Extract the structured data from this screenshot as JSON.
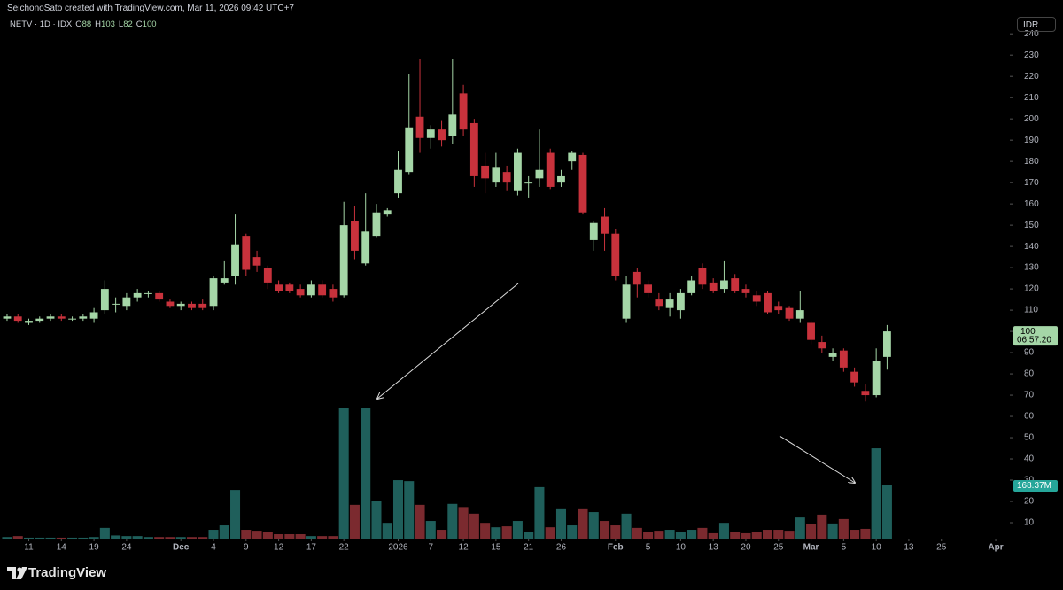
{
  "chart_data": {
    "type": "candlestick",
    "title": "SeichonoSato created with TradingView.com, Mar 11, 2026 09:42 UTC+7",
    "symbol": "NETV · 1D · IDX",
    "ohlc_labels": [
      "O",
      "H",
      "L",
      "C"
    ],
    "currency": "IDR",
    "countdown": "06:57:20",
    "brand": "TradingView",
    "up_color": "#a5d6a7",
    "down_color": "#c8323c",
    "volume_up_color": "#1f5f5b",
    "volume_down_color": "#7b2a2f",
    "open": [
      106,
      107,
      104,
      105,
      106,
      107,
      106,
      106,
      106,
      110,
      113,
      112,
      116,
      118,
      118,
      114,
      112,
      113,
      113,
      112,
      123,
      126,
      145,
      135,
      130,
      122,
      122,
      120,
      117,
      122,
      120,
      117,
      152,
      132,
      145,
      155,
      165,
      175,
      201,
      191,
      195,
      192,
      212,
      198,
      178,
      170,
      175,
      166,
      170,
      172,
      184,
      170,
      180,
      183,
      143,
      154,
      146,
      106,
      128,
      122,
      115,
      111,
      110,
      118,
      130,
      123,
      120,
      125,
      120,
      117,
      118,
      112,
      111,
      106,
      104,
      95,
      88,
      91,
      81,
      72,
      70,
      88
    ],
    "high": [
      108,
      108,
      106,
      107,
      108,
      108,
      107,
      108,
      111,
      124,
      116,
      118,
      120,
      119,
      119,
      115,
      114,
      114,
      115,
      126,
      133,
      155,
      146,
      138,
      131,
      124,
      123,
      122,
      124,
      124,
      122,
      161,
      159,
      165,
      160,
      158,
      185,
      221,
      228,
      197,
      199,
      228,
      216,
      200,
      184,
      184,
      178,
      186,
      173,
      195,
      186,
      176,
      185,
      184,
      152,
      158,
      148,
      126,
      130,
      124,
      118,
      118,
      120,
      126,
      132,
      125,
      133,
      127,
      122,
      119,
      119,
      114,
      112,
      119,
      105,
      98,
      92,
      92,
      83,
      75,
      92,
      103
    ],
    "low": [
      105,
      104,
      103,
      104,
      105,
      105,
      105,
      105,
      104,
      108,
      109,
      110,
      114,
      116,
      114,
      111,
      110,
      110,
      110,
      110,
      122,
      122,
      126,
      128,
      120,
      118,
      118,
      116,
      116,
      116,
      114,
      116,
      134,
      131,
      144,
      154,
      163,
      174,
      184,
      186,
      187,
      188,
      192,
      168,
      165,
      168,
      166,
      164,
      163,
      168,
      167,
      168,
      176,
      155,
      138,
      138,
      124,
      104,
      116,
      116,
      110,
      107,
      106,
      117,
      120,
      118,
      118,
      118,
      116,
      112,
      108,
      108,
      105,
      104,
      94,
      90,
      86,
      81,
      74,
      67,
      69,
      82
    ],
    "close": [
      107,
      105,
      105,
      106,
      107,
      106,
      106,
      107,
      109,
      120,
      113,
      116,
      118,
      118,
      115,
      112,
      113,
      111,
      111,
      125,
      125,
      141,
      129,
      131,
      123,
      119,
      119,
      117,
      122,
      117,
      116,
      150,
      138,
      147,
      156,
      157,
      176,
      196,
      191,
      195,
      190,
      202,
      195,
      173,
      172,
      177,
      170,
      184,
      170,
      176,
      168,
      173,
      184,
      156,
      151,
      146,
      126,
      122,
      122,
      118,
      112,
      115,
      118,
      124,
      122,
      119,
      124,
      119,
      118,
      114,
      109,
      110,
      106,
      110,
      96,
      92,
      90,
      83,
      76,
      70,
      86,
      100
    ],
    "volume": [
      5,
      8,
      3,
      3,
      3,
      3,
      3,
      3,
      5,
      34,
      10,
      8,
      8,
      5,
      5,
      5,
      5,
      5,
      5,
      28,
      42,
      154,
      28,
      25,
      20,
      14,
      14,
      14,
      8,
      8,
      8,
      415,
      107,
      415,
      120,
      50,
      185,
      182,
      107,
      56,
      28,
      110,
      100,
      79,
      50,
      36,
      39,
      56,
      22,
      163,
      36,
      93,
      42,
      93,
      84,
      56,
      42,
      79,
      34,
      22,
      25,
      28,
      22,
      28,
      34,
      17,
      50,
      22,
      17,
      20,
      28,
      28,
      25,
      67,
      45,
      76,
      48,
      62,
      28,
      31,
      286,
      168.37
    ],
    "volume_label": "168.37M",
    "vlim": [
      0,
      606
    ],
    "ylim": [
      2.5,
      243
    ],
    "yticks": [
      10,
      20,
      30,
      40,
      50,
      60,
      70,
      80,
      90,
      100,
      110,
      120,
      130,
      140,
      150,
      160,
      170,
      180,
      190,
      200,
      210,
      220,
      230,
      240
    ],
    "xlim": [
      -0.65,
      92.3
    ],
    "xticks": [
      {
        "value": 2,
        "label": "11"
      },
      {
        "value": 5,
        "label": "14"
      },
      {
        "value": 8,
        "label": "19"
      },
      {
        "value": 11,
        "label": "24"
      },
      {
        "value": 16,
        "label": "Dec"
      },
      {
        "value": 19,
        "label": "4"
      },
      {
        "value": 22,
        "label": "9"
      },
      {
        "value": 25,
        "label": "12"
      },
      {
        "value": 28,
        "label": "17"
      },
      {
        "value": 31,
        "label": "22"
      },
      {
        "value": 36,
        "label": "2026"
      },
      {
        "value": 39,
        "label": "7"
      },
      {
        "value": 42,
        "label": "12"
      },
      {
        "value": 45,
        "label": "15"
      },
      {
        "value": 48,
        "label": "21"
      },
      {
        "value": 51,
        "label": "26"
      },
      {
        "value": 56,
        "label": "Feb"
      },
      {
        "value": 59,
        "label": "5"
      },
      {
        "value": 62,
        "label": "10"
      },
      {
        "value": 65,
        "label": "13"
      },
      {
        "value": 68,
        "label": "20"
      },
      {
        "value": 71,
        "label": "25"
      },
      {
        "value": 74,
        "label": "Mar"
      },
      {
        "value": 77,
        "label": "5"
      },
      {
        "value": 80,
        "label": "10"
      },
      {
        "value": 83,
        "label": "13"
      },
      {
        "value": 86,
        "label": "25"
      },
      {
        "value": 91,
        "label": "Apr"
      }
    ]
  }
}
